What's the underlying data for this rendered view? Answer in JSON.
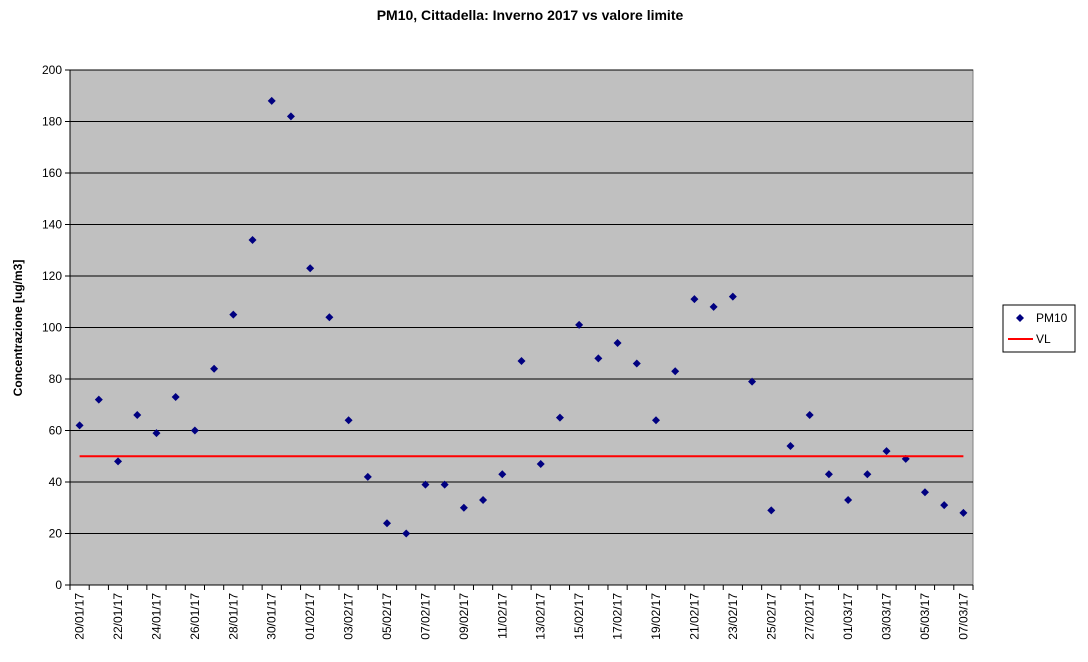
{
  "chart_data": {
    "type": "scatter",
    "title": "PM10, Cittadella: Inverno 2017 vs valore limite",
    "y_label": "Concentrazione [ug/m3]",
    "categories": [
      "20/01/17",
      null,
      "22/01/17",
      null,
      "24/01/17",
      null,
      "26/01/17",
      null,
      "28/01/17",
      null,
      "30/01/17",
      null,
      "01/02/17",
      null,
      "03/02/17",
      null,
      "05/02/17",
      null,
      "07/02/17",
      null,
      "09/02/17",
      null,
      "11/02/17",
      null,
      "13/02/17",
      null,
      "15/02/17",
      null,
      "17/02/17",
      null,
      "19/02/17",
      null,
      "21/02/17",
      null,
      "23/02/17",
      null,
      "25/02/17",
      null,
      "27/02/17",
      null,
      "01/03/17",
      null,
      "03/03/17",
      null,
      "05/03/17",
      null,
      "07/03/17"
    ],
    "series": [
      {
        "name": "PM10",
        "type": "scatter",
        "color": "#000080",
        "values": [
          62,
          72,
          48,
          66,
          59,
          73,
          60,
          84,
          105,
          134,
          188,
          182,
          123,
          104,
          64,
          42,
          24,
          20,
          39,
          39,
          30,
          33,
          43,
          87,
          47,
          65,
          101,
          88,
          94,
          86,
          64,
          83,
          111,
          108,
          112,
          79,
          29,
          54,
          66,
          43,
          33,
          43,
          52,
          49,
          36,
          31,
          28
        ]
      },
      {
        "name": "VL",
        "type": "line",
        "color": "#ff0000",
        "values": [
          50,
          50,
          50,
          50,
          50,
          50,
          50,
          50,
          50,
          50,
          50,
          50,
          50,
          50,
          50,
          50,
          50,
          50,
          50,
          50,
          50,
          50,
          50,
          50,
          50,
          50,
          50,
          50,
          50,
          50,
          50,
          50,
          50,
          50,
          50,
          50,
          50,
          50,
          50,
          50,
          50,
          50,
          50,
          50,
          50,
          50,
          50
        ]
      }
    ],
    "ylim": [
      0,
      200
    ],
    "yticks": [
      0,
      20,
      40,
      60,
      80,
      100,
      120,
      140,
      160,
      180,
      200
    ],
    "grid": true,
    "plot_background": "#c0c0c0",
    "legend": "right"
  }
}
